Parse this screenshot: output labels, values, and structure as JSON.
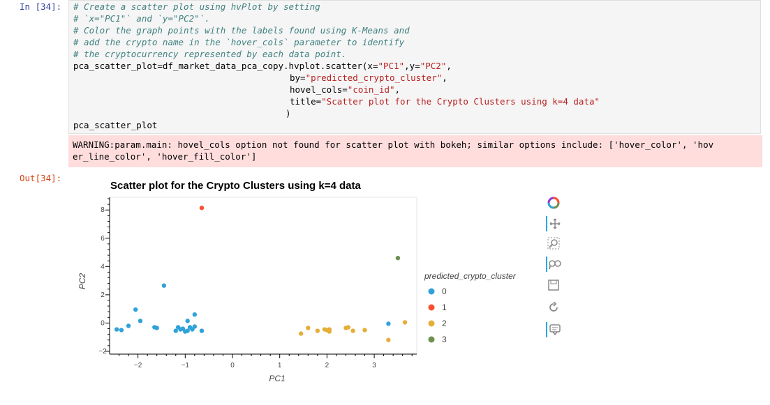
{
  "input_prompt": "In [34]:",
  "output_prompt": "Out[34]:",
  "code": {
    "line1": "# Create a scatter plot using hvPlot by setting",
    "line2": "# `x=\"PC1\"` and `y=\"PC2\"`.",
    "line3": "# Color the graph points with the labels found using K-Means and",
    "line4": "# add the crypto name in the `hover_cols` parameter to identify",
    "line5": "# the cryptocurrency represented by each data point.",
    "line6_a": "pca_scatter_plot=df_market_data_pca_copy.hvplot.scatter(x=",
    "line6_b": "\"PC1\"",
    "line6_c": ",y=",
    "line6_d": "\"PC2\"",
    "line6_e": ",",
    "line7_a": "by=",
    "line7_b": "\"predicted_crypto_cluster\"",
    "line7_c": ",",
    "line8_a": "hovel_cols=",
    "line8_b": "\"coin_id\"",
    "line8_c": ",",
    "line9_a": "title=",
    "line9_b": "\"Scatter plot for the Crypto Clusters using k=4 data\"",
    "line10": ")",
    "line12": "pca_scatter_plot"
  },
  "warning": {
    "line1": "WARNING:param.main: hovel_cols option not found for scatter plot with bokeh; similar options include: ['hover_color', 'hov",
    "line2": "er_line_color', 'hover_fill_color']"
  },
  "toolbar": {
    "tools": [
      "bokeh-logo-icon",
      "pan-icon",
      "box-zoom-icon",
      "wheel-zoom-icon",
      "save-icon",
      "reset-icon",
      "hover-icon"
    ]
  },
  "chart_data": {
    "type": "scatter",
    "title": "Scatter plot for the Crypto Clusters using k=4 data",
    "xlabel": "PC1",
    "ylabel": "PC2",
    "xlim": [
      -2.6,
      3.9
    ],
    "ylim": [
      -2.2,
      8.9
    ],
    "xticks": [
      -2,
      -1,
      0,
      1,
      2,
      3
    ],
    "yticks": [
      -2,
      0,
      2,
      4,
      6,
      8
    ],
    "grid": false,
    "legend_title": "predicted_crypto_cluster",
    "legend_position": "right",
    "series": [
      {
        "name": "0",
        "color": "#30a2da",
        "points": [
          [
            -2.45,
            -0.45
          ],
          [
            -2.35,
            -0.5
          ],
          [
            -2.2,
            -0.2
          ],
          [
            -2.05,
            0.95
          ],
          [
            -1.95,
            0.15
          ],
          [
            -1.65,
            -0.3
          ],
          [
            -1.6,
            -0.35
          ],
          [
            -1.45,
            2.65
          ],
          [
            -1.2,
            -0.55
          ],
          [
            -1.15,
            -0.3
          ],
          [
            -1.1,
            -0.45
          ],
          [
            -1.05,
            -0.4
          ],
          [
            -1.0,
            -0.6
          ],
          [
            -0.95,
            -0.55
          ],
          [
            -0.95,
            0.15
          ],
          [
            -0.9,
            -0.3
          ],
          [
            -0.85,
            -0.45
          ],
          [
            -0.8,
            0.6
          ],
          [
            -0.8,
            -0.25
          ],
          [
            -0.65,
            -0.55
          ],
          [
            3.3,
            -0.05
          ]
        ]
      },
      {
        "name": "1",
        "color": "#fc4f30",
        "points": [
          [
            -0.65,
            8.15
          ]
        ]
      },
      {
        "name": "2",
        "color": "#e5ae38",
        "points": [
          [
            1.45,
            -0.75
          ],
          [
            1.6,
            -0.35
          ],
          [
            1.8,
            -0.55
          ],
          [
            1.95,
            -0.45
          ],
          [
            2.0,
            -0.5
          ],
          [
            2.05,
            -0.6
          ],
          [
            2.05,
            -0.45
          ],
          [
            2.4,
            -0.35
          ],
          [
            2.45,
            -0.3
          ],
          [
            2.55,
            -0.55
          ],
          [
            2.8,
            -0.5
          ],
          [
            3.3,
            -1.2
          ],
          [
            3.65,
            0.05
          ]
        ]
      },
      {
        "name": "3",
        "color": "#6d904f",
        "points": [
          [
            3.5,
            4.6
          ]
        ]
      }
    ]
  }
}
